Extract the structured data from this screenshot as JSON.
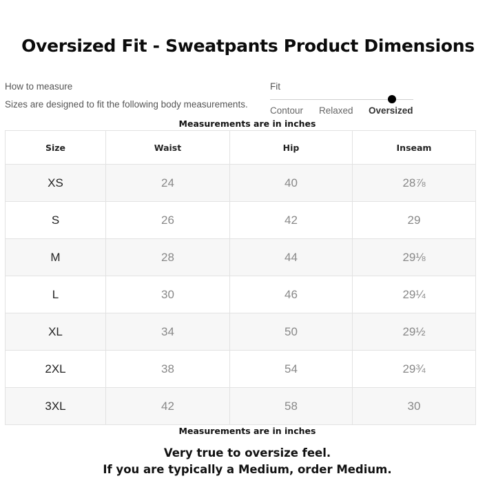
{
  "title": "Oversized Fit - Sweatpants Product Dimensions",
  "how_to_measure": "How to measure",
  "description": "Sizes are designed to fit the following body measurements.",
  "fit": {
    "label": "Fit",
    "options": [
      "Contour",
      "Relaxed",
      "Oversized"
    ],
    "selected": "Oversized"
  },
  "note_top": "Measurements are in inches",
  "table": {
    "headers": [
      "Size",
      "Waist",
      "Hip",
      "Inseam"
    ],
    "rows": [
      [
        "XS",
        "24",
        "40",
        "28⅞"
      ],
      [
        "S",
        "26",
        "42",
        "29"
      ],
      [
        "M",
        "28",
        "44",
        "29⅛"
      ],
      [
        "L",
        "30",
        "46",
        "29¼"
      ],
      [
        "XL",
        "34",
        "50",
        "29½"
      ],
      [
        "2XL",
        "38",
        "54",
        "29¾"
      ],
      [
        "3XL",
        "42",
        "58",
        "30"
      ]
    ]
  },
  "note_bottom": "Measurements are in inches",
  "tip_line1": "Very true to oversize feel.",
  "tip_line2": "If you are typically a Medium, order Medium."
}
